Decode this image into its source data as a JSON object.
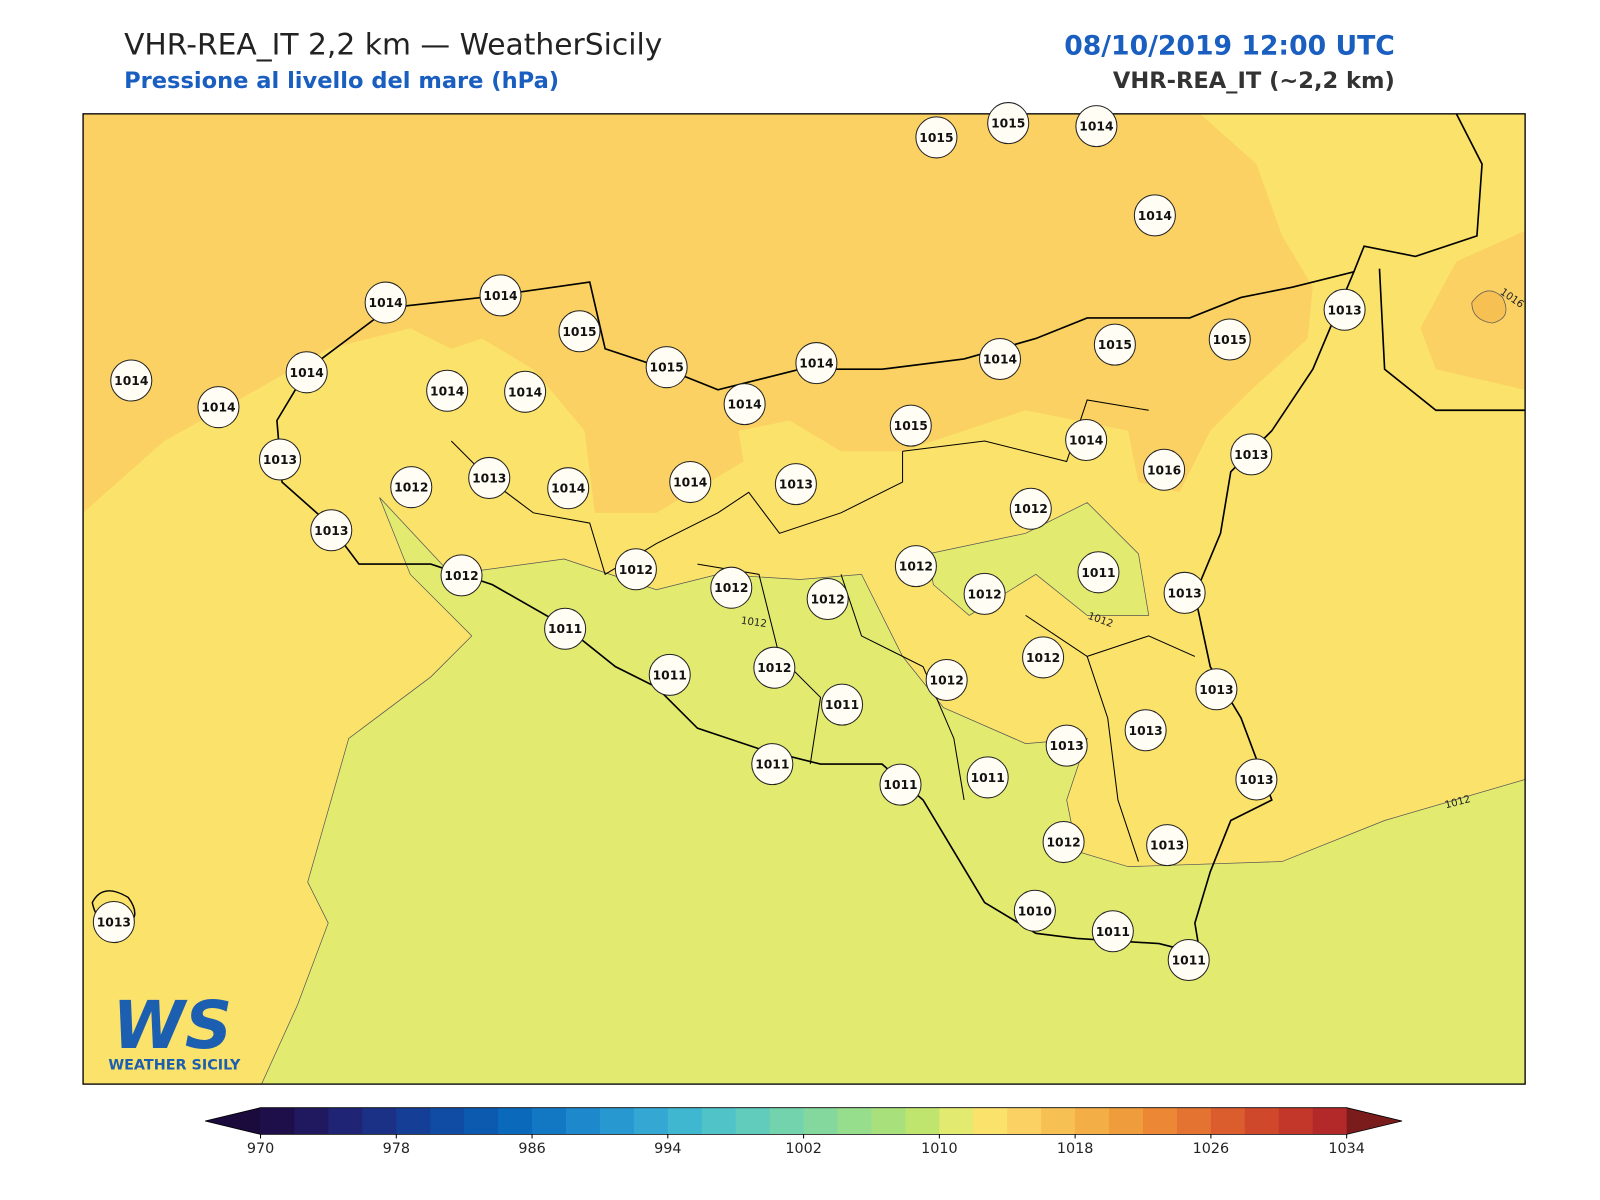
{
  "header": {
    "title": "VHR-REA_IT 2,2 km — WeatherSicily",
    "subtitle": "Pressione al livello del mare (hPa)",
    "datetime": "08/10/2019 12:00 UTC",
    "model": "VHR-REA_IT (~2,2 km)"
  },
  "stations": [
    1015,
    1015,
    1014,
    1014,
    1014,
    1014,
    1015,
    1015,
    1014,
    1014,
    1015,
    1015,
    1013,
    1014,
    1014,
    1014,
    1014,
    1014,
    1014,
    1015,
    1014,
    1016,
    1013,
    1013,
    1012,
    1013,
    1014,
    1014,
    1013,
    1012,
    1013,
    1012,
    1012,
    1012,
    1012,
    1012,
    1012,
    1011,
    1013,
    1011,
    1012,
    1011,
    1012,
    1012,
    1011,
    1013,
    1013,
    1013,
    1011,
    1011,
    1011,
    1013,
    1012,
    1013,
    1010,
    1011,
    1011,
    1013
  ],
  "contour_labels": [
    "1016",
    "1012",
    "1012",
    "1012"
  ],
  "logo": {
    "mark": "WS",
    "text": "WEATHER SICILY"
  },
  "colorbar": {
    "range": [
      970,
      1034
    ],
    "ticks": [
      970,
      978,
      986,
      994,
      1002,
      1010,
      1018,
      1026,
      1034
    ],
    "colors": [
      "#1e0f4b",
      "#211960",
      "#1f2474",
      "#1a3186",
      "#153e96",
      "#104ca4",
      "#0c5ab0",
      "#0b69bc",
      "#1278c4",
      "#1d88cc",
      "#2898d0",
      "#34a8d2",
      "#3fb7d0",
      "#4fc3c8",
      "#61ccbc",
      "#73d3ad",
      "#84d89d",
      "#96dd8c",
      "#a8e17c",
      "#c0e56f",
      "#e2eb70",
      "#fbe26a",
      "#fad162",
      "#f7c052",
      "#f3ae45",
      "#ef9c3c",
      "#eb8735",
      "#e47230",
      "#db5c2d",
      "#d0482b",
      "#c3372a",
      "#b32828"
    ],
    "under_color": "#1a0b3c",
    "over_color": "#7a1c1c"
  }
}
